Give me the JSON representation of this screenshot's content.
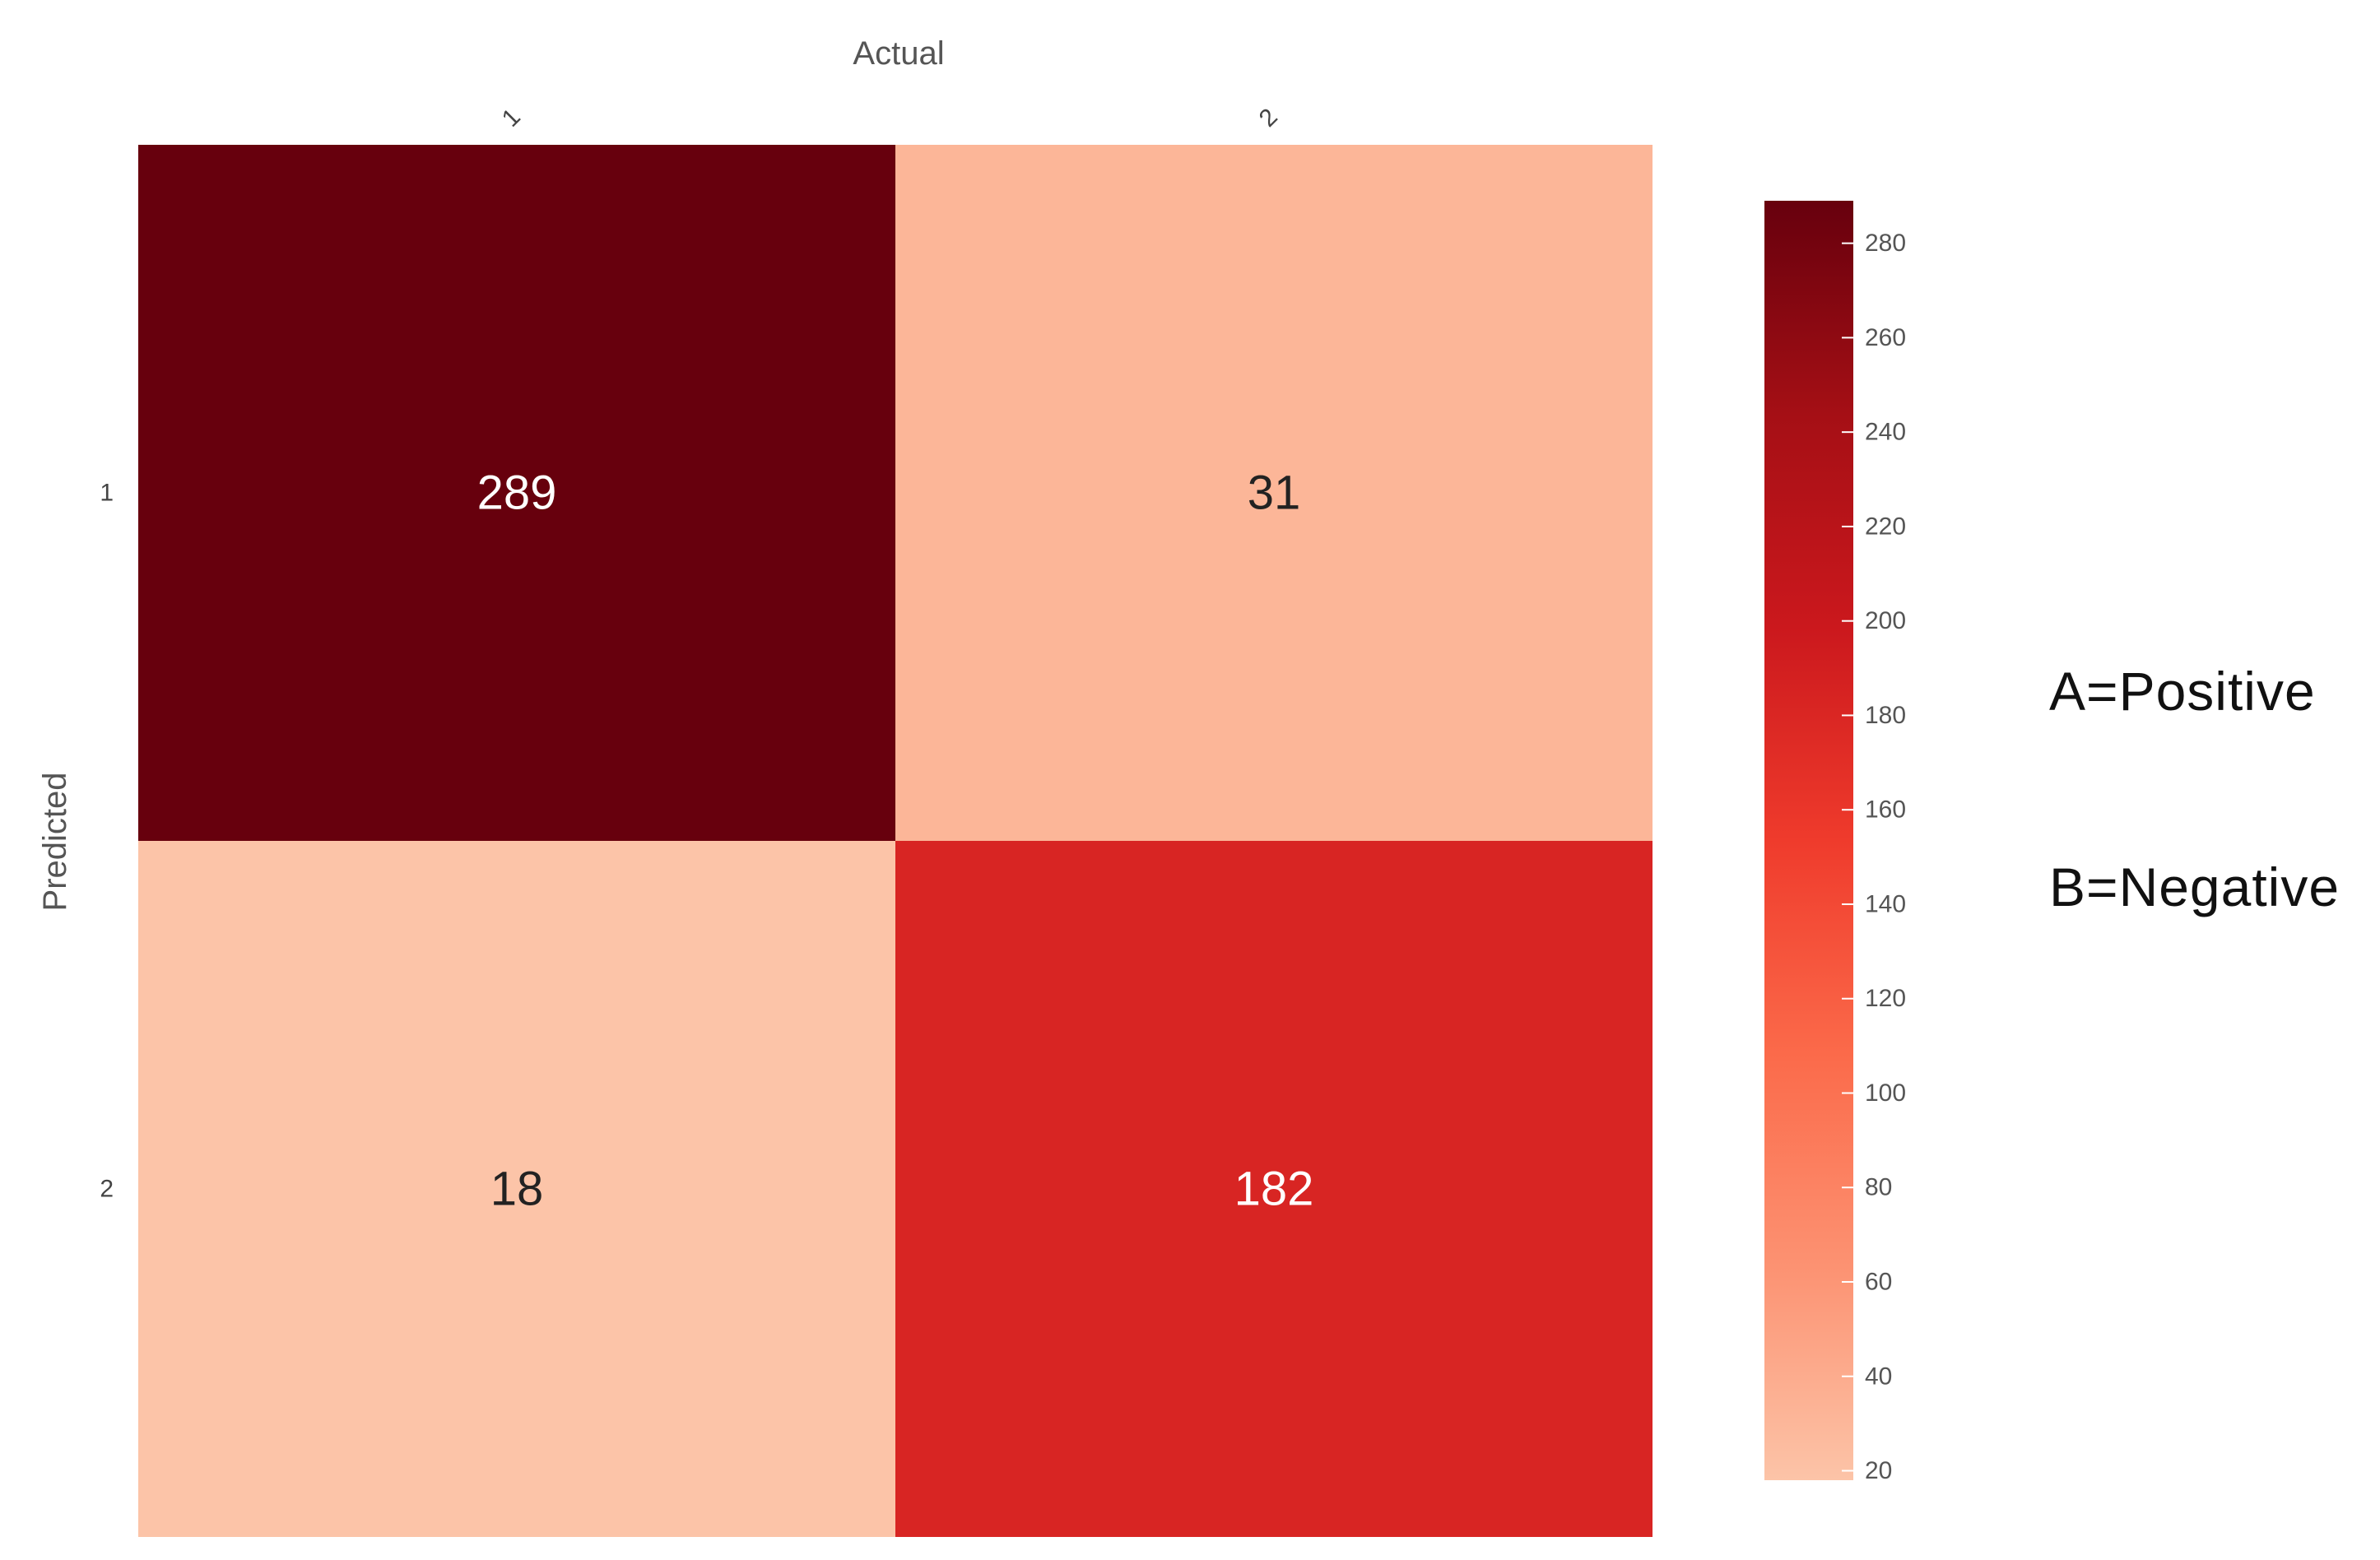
{
  "chart_data": {
    "type": "heatmap",
    "xlabel": "Actual",
    "ylabel": "Predicted",
    "x_categories": [
      "1",
      "2"
    ],
    "y_categories": [
      "1",
      "2"
    ],
    "matrix": [
      [
        289,
        31
      ],
      [
        18,
        182
      ]
    ],
    "colorbar": {
      "ticks": [
        20,
        40,
        60,
        80,
        100,
        120,
        140,
        160,
        180,
        200,
        220,
        240,
        260,
        280
      ],
      "range": [
        18,
        289
      ],
      "colormap": [
        "#fcc4a8",
        "#fc9272",
        "#fb6a4a",
        "#ef3b2c",
        "#cb181d",
        "#a50f15",
        "#67000d"
      ]
    }
  },
  "annotations": {
    "positive": "A=Positive",
    "negative": "B=Negative"
  }
}
